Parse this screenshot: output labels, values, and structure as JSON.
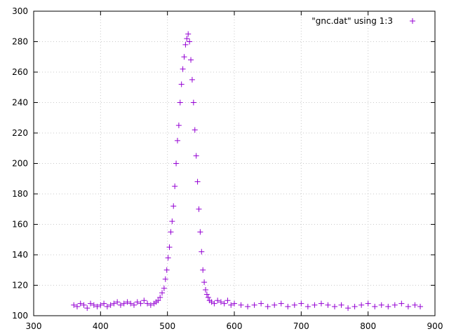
{
  "chart_data": {
    "type": "scatter",
    "title": "",
    "xlabel": "",
    "ylabel": "",
    "xlim": [
      300,
      900
    ],
    "ylim": [
      100,
      300
    ],
    "xticks": [
      300,
      400,
      500,
      600,
      700,
      800,
      900
    ],
    "yticks": [
      100,
      120,
      140,
      160,
      180,
      200,
      220,
      240,
      260,
      280,
      300
    ],
    "xtick_labels": [
      "300",
      "400",
      "500",
      "600",
      "700",
      "800",
      "900"
    ],
    "ytick_labels": [
      "100",
      "120",
      "140",
      "160",
      "180",
      "200",
      "220",
      "240",
      "260",
      "280",
      "300"
    ],
    "grid": true,
    "legend_position": "top-right",
    "marker": "plus",
    "colors": {
      "series": "#9400d3",
      "grid": "#c8c8c8",
      "axis": "#000000"
    },
    "series": [
      {
        "name": "\"gnc.dat\" using 1:3",
        "x": [
          360,
          365,
          370,
          375,
          380,
          385,
          390,
          395,
          400,
          405,
          410,
          415,
          420,
          425,
          430,
          435,
          440,
          445,
          450,
          455,
          460,
          465,
          470,
          475,
          480,
          483,
          486,
          489,
          492,
          495,
          497,
          499,
          501,
          503,
          505,
          507,
          509,
          511,
          513,
          515,
          517,
          519,
          521,
          523,
          525,
          527,
          529,
          531,
          533,
          535,
          537,
          539,
          541,
          543,
          545,
          547,
          549,
          551,
          553,
          555,
          557,
          559,
          561,
          563,
          566,
          570,
          575,
          580,
          585,
          590,
          595,
          600,
          610,
          620,
          630,
          640,
          650,
          660,
          670,
          680,
          690,
          700,
          710,
          720,
          730,
          740,
          750,
          760,
          770,
          780,
          790,
          800,
          810,
          820,
          830,
          840,
          850,
          860,
          870,
          878
        ],
        "y": [
          107,
          106,
          108,
          107,
          105,
          108,
          107,
          106,
          107,
          108,
          106,
          107,
          108,
          109,
          107,
          108,
          109,
          108,
          107,
          109,
          108,
          110,
          108,
          107,
          108,
          109,
          110,
          112,
          115,
          118,
          124,
          130,
          138,
          145,
          155,
          162,
          172,
          185,
          200,
          215,
          225,
          240,
          252,
          262,
          270,
          278,
          282,
          285,
          280,
          268,
          255,
          240,
          222,
          205,
          188,
          170,
          155,
          142,
          130,
          122,
          117,
          114,
          112,
          110,
          109,
          108,
          110,
          109,
          108,
          110,
          107,
          108,
          107,
          106,
          107,
          108,
          106,
          107,
          108,
          106,
          107,
          108,
          106,
          107,
          108,
          107,
          106,
          107,
          105,
          106,
          107,
          108,
          106,
          107,
          106,
          107,
          108,
          106,
          107,
          106
        ]
      }
    ]
  }
}
